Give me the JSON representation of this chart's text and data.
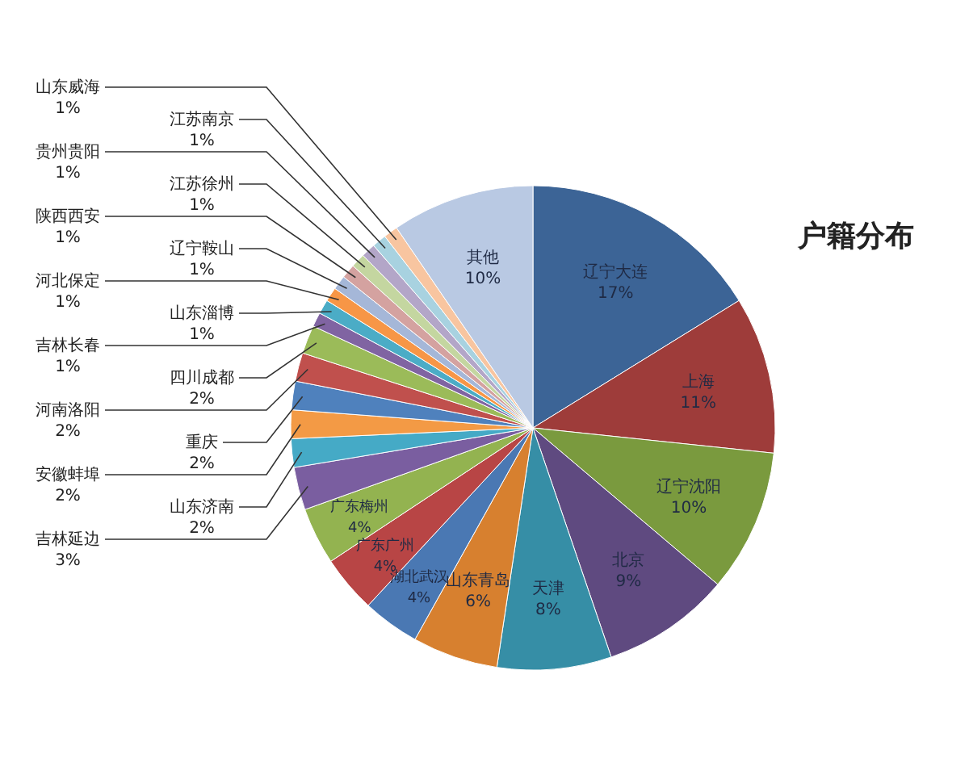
{
  "chart_data": {
    "type": "pie",
    "title": "户籍分布",
    "categories": [
      "辽宁大连",
      "上海",
      "辽宁沈阳",
      "北京",
      "天津",
      "山东青岛",
      "湖北武汉",
      "广东广州",
      "广东梅州",
      "吉林延边",
      "山东济南",
      "安徽蚌埠",
      "重庆",
      "河南洛阳",
      "四川成都",
      "吉林长春",
      "山东淄博",
      "河北保定",
      "辽宁鞍山",
      "陕西西安",
      "江苏徐州",
      "贵州贵阳",
      "江苏南京",
      "山东威海",
      "其他"
    ],
    "values": [
      17,
      11,
      10,
      9,
      8,
      6,
      4,
      4,
      4,
      3,
      2,
      2,
      2,
      2,
      2,
      1,
      1,
      1,
      1,
      1,
      1,
      1,
      1,
      1,
      10
    ],
    "value_labels": [
      "17%",
      "11%",
      "10%",
      "9%",
      "8%",
      "6%",
      "4%",
      "4%",
      "4%",
      "3%",
      "2%",
      "2%",
      "2%",
      "2%",
      "2%",
      "1%",
      "1%",
      "1%",
      "1%",
      "1%",
      "1%",
      "1%",
      "1%",
      "1%",
      "10%"
    ],
    "colors": [
      "#3c6496",
      "#9e3c3a",
      "#7a9a3e",
      "#5f4a80",
      "#368ea6",
      "#d7802f",
      "#4a78b3",
      "#b84545",
      "#93b350",
      "#7a5ea0",
      "#45aac6",
      "#f39a45",
      "#4f81bd",
      "#c0504d",
      "#9bbb59",
      "#8064a2",
      "#4bacc6",
      "#f79646",
      "#a5b7d8",
      "#d4a2a0",
      "#c4d6a0",
      "#b3a6c8",
      "#a8d2e0",
      "#f8c5a0",
      "#b9c9e3"
    ]
  }
}
